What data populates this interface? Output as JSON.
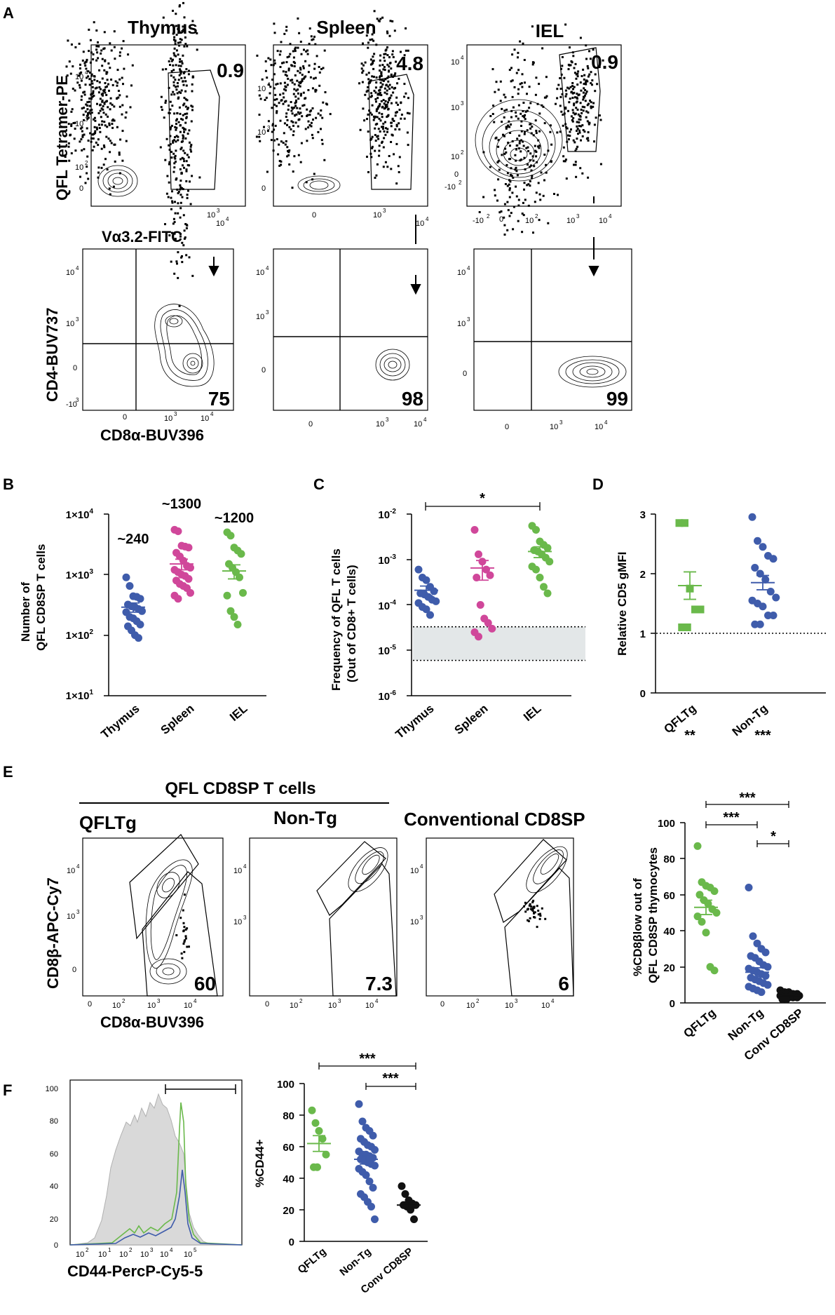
{
  "colors": {
    "green": "#6ab94b",
    "magenta": "#d0479a",
    "blue": "#3f5cab",
    "black": "#111111",
    "grey": "#d9d9d9",
    "band": "#e3e7e8"
  },
  "panelA": {
    "letter": "A",
    "tissues": [
      "Thymus",
      "Spleen",
      "IEL"
    ],
    "gatePercents": [
      "0.9",
      "4.8",
      "0.9"
    ],
    "cd8Percents": [
      "75",
      "98",
      "99"
    ],
    "ylabelTop": "QFL Tetramer-PE",
    "xlabelTop": "Vα3.2-FITC",
    "ylabelBottom": "CD4-BUV737",
    "xlabelBottom": "CD8α-BUV396",
    "ticks": {
      "t10_4": "10",
      "t10_3": "10",
      "t10_2": "10",
      "t0": "0",
      "tneg": "-10",
      "tneg2": "-10"
    }
  },
  "panelB": {
    "letter": "B",
    "ylabel1": "Number of",
    "ylabel2": "QFL CD8SP T cells",
    "yticks": [
      "1×10",
      "1×10",
      "1×10",
      "1×10"
    ],
    "ytickExps": [
      "4",
      "3",
      "2",
      "1"
    ],
    "annotations": [
      "~240",
      "~1300",
      "~1200"
    ]
  },
  "panelC": {
    "letter": "C",
    "ylabel1": "Frequency of QFL T cells",
    "ylabel2": "(Out of CD8+ T cells)",
    "yticks": [
      "10",
      "10",
      "10",
      "10",
      "10"
    ],
    "ytickExps": [
      "-2",
      "-3",
      "-4",
      "-5",
      "-6"
    ],
    "sig": "*"
  },
  "panelD": {
    "letter": "D",
    "ylabel": "Relative CD5 gMFI",
    "yticks": [
      "3",
      "2",
      "1",
      "0"
    ],
    "sigs": [
      "**",
      "***"
    ]
  },
  "panelE": {
    "letter": "E",
    "groupLabel": "QFL CD8SP T cells",
    "plotTitles": [
      "QFLTg",
      "Non-Tg",
      "Conventional CD8SP"
    ],
    "percents": [
      "60",
      "7.3",
      "6"
    ],
    "ylabel": "CD8β-APC-Cy7",
    "xlabel": "CD8α-BUV396",
    "scatterYlabel1": "%CD8βlow out of",
    "scatterYlabel2": "QFL CD8SP thymocytes",
    "yticks": [
      "100",
      "80",
      "60",
      "40",
      "20",
      "0"
    ],
    "sigs": [
      "***",
      "***",
      "*"
    ]
  },
  "panelF": {
    "letter": "F",
    "histYticks": [
      "100",
      "80",
      "60",
      "40",
      "20",
      "0"
    ],
    "xlabel": "CD44-PercP-Cy5-5",
    "scatterYlabel": "%CD44+",
    "yticks": [
      "100",
      "80",
      "60",
      "40",
      "20",
      "0"
    ],
    "sigs": [
      "***",
      "***"
    ]
  },
  "chart_data": [
    {
      "id": "B",
      "type": "scatter",
      "yscale": "log",
      "ylim": [
        10,
        10000
      ],
      "categories": [
        "Thymus",
        "Spleen",
        "IEL"
      ],
      "series": [
        {
          "name": "Thymus",
          "values": [
            900,
            650,
            440,
            430,
            400,
            320,
            300,
            290,
            270,
            250,
            240,
            200,
            190,
            170,
            150,
            140,
            120,
            100,
            90
          ],
          "mean": 290,
          "sem": 50
        },
        {
          "name": "Spleen",
          "values": [
            5500,
            5200,
            3000,
            2900,
            2800,
            2300,
            2000,
            1700,
            1400,
            1300,
            1200,
            1100,
            1000,
            950,
            850,
            800,
            700,
            650,
            600,
            500,
            450,
            400
          ],
          "mean": 1500,
          "sem": 300
        },
        {
          "name": "IEL",
          "values": [
            5000,
            4400,
            2800,
            2500,
            2200,
            1500,
            1300,
            1100,
            900,
            500,
            450,
            250,
            200,
            150
          ],
          "mean": 1150,
          "sem": 300
        }
      ]
    },
    {
      "id": "C",
      "type": "scatter",
      "yscale": "log",
      "ylim": [
        1e-06,
        0.01
      ],
      "categories": [
        "Thymus",
        "Spleen",
        "IEL"
      ],
      "band": [
        6e-06,
        3.3e-05
      ],
      "series": [
        {
          "name": "Thymus",
          "values": [
            0.0006,
            0.0004,
            0.00035,
            0.00025,
            0.0002,
            0.00018,
            0.00017,
            0.00015,
            0.00013,
            0.00012,
            0.00011,
            9e-05,
            8e-05,
            6e-05
          ],
          "mean": 0.00021,
          "sem": 5e-05
        },
        {
          "name": "Spleen",
          "values": [
            0.0045,
            0.0013,
            0.0009,
            0.0006,
            0.00045,
            0.0004,
            0.0001,
            5e-05,
            4e-05,
            3e-05,
            2.5e-05,
            2e-05
          ],
          "mean": 0.00065,
          "sem": 0.0003
        },
        {
          "name": "IEL",
          "values": [
            0.0055,
            0.0045,
            0.0025,
            0.0021,
            0.0018,
            0.0016,
            0.0015,
            0.0013,
            0.0011,
            0.0009,
            0.0007,
            0.0006,
            0.0004,
            0.00025,
            0.00018
          ],
          "mean": 0.0015,
          "sem": 0.0004
        }
      ]
    },
    {
      "id": "D",
      "type": "scatter",
      "ylim": [
        0,
        3
      ],
      "categories": [
        "QFLTg",
        "Non-Tg"
      ],
      "reference": 1,
      "series": [
        {
          "name": "QFLTg",
          "marker": "square",
          "values": [
            2.85,
            2.85,
            1.75,
            1.4,
            1.4,
            1.1,
            1.1
          ],
          "mean": 1.8,
          "sem": 0.23
        },
        {
          "name": "Non-Tg",
          "values": [
            2.95,
            2.55,
            2.45,
            2.3,
            2.25,
            2.1,
            2.0,
            1.9,
            1.7,
            1.6,
            1.55,
            1.5,
            1.45,
            1.3,
            1.3,
            1.15,
            1.15
          ],
          "mean": 1.85,
          "sem": 0.12
        }
      ]
    },
    {
      "id": "E-scatter",
      "type": "scatter",
      "ylim": [
        0,
        100
      ],
      "categories": [
        "QFLTg",
        "Non-Tg",
        "Conv CD8SP"
      ],
      "series": [
        {
          "name": "QFLTg",
          "values": [
            87,
            67,
            65,
            64,
            62,
            60,
            57,
            55,
            52,
            50,
            48,
            45,
            39,
            20,
            18
          ],
          "mean": 53,
          "sem": 4
        },
        {
          "name": "Non-Tg",
          "values": [
            64,
            37,
            33,
            30,
            28,
            26,
            25,
            23,
            21,
            20,
            19,
            18,
            17,
            16,
            15,
            14,
            13,
            12,
            11,
            10,
            9,
            8,
            7,
            6
          ],
          "mean": 17,
          "sem": 2.5
        },
        {
          "name": "Conv CD8SP",
          "values": [
            7,
            6,
            6,
            5,
            5,
            5,
            5,
            4,
            4,
            4,
            4,
            3,
            3,
            3,
            3,
            2,
            2
          ],
          "mean": 4,
          "sem": 0.5
        }
      ]
    },
    {
      "id": "F-scatter",
      "type": "scatter",
      "ylim": [
        0,
        100
      ],
      "categories": [
        "QFLTg",
        "Non-Tg",
        "Conv CD8SP"
      ],
      "series": [
        {
          "name": "QFLTg",
          "values": [
            83,
            75,
            70,
            65,
            55,
            47,
            47
          ],
          "mean": 62,
          "sem": 5
        },
        {
          "name": "Non-Tg",
          "values": [
            87,
            76,
            72,
            70,
            67,
            65,
            63,
            61,
            60,
            58,
            57,
            55,
            55,
            54,
            53,
            52,
            51,
            50,
            49,
            48,
            46,
            44,
            42,
            38,
            34,
            30,
            28,
            25,
            22,
            14
          ],
          "mean": 52,
          "sem": 3
        },
        {
          "name": "Conv CD8SP",
          "values": [
            35,
            30,
            26,
            24,
            23,
            23,
            22,
            20,
            14
          ],
          "mean": 23,
          "sem": 2
        }
      ]
    }
  ]
}
